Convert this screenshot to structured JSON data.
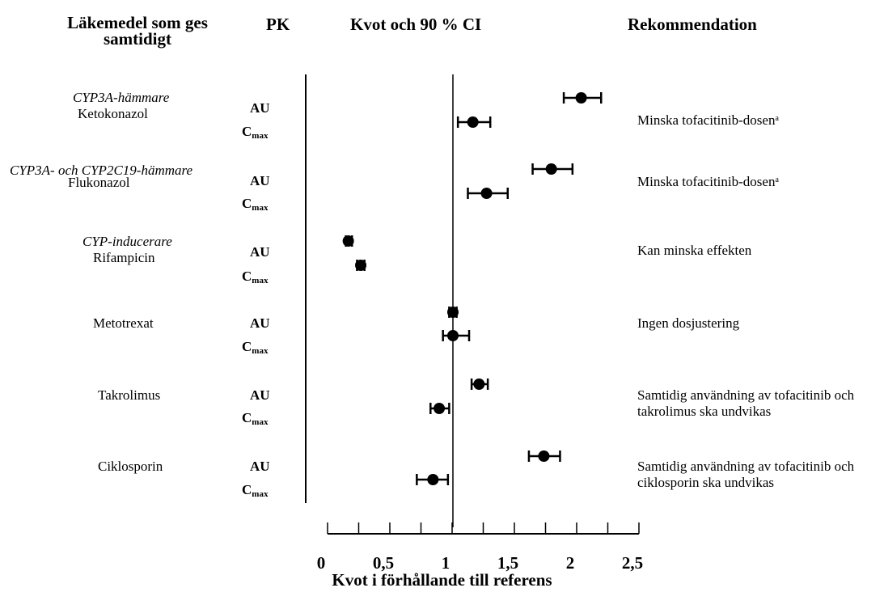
{
  "headers": {
    "drug": "Läkemedel som ges samtidigt",
    "pk": "PK",
    "ratio": "Kvot och 90 % CI",
    "recommendation": "Rekommendation"
  },
  "rows": [
    {
      "class": "CYP3A-hämmare",
      "drug": "Ketokonazol",
      "recommendation": "Minska tofacitinib-dosen",
      "footnote": "a"
    },
    {
      "class": "CYP3A- och CYP2C19-hämmare",
      "drug": "Flukonazol",
      "recommendation": "Minska tofacitinib-dosen",
      "footnote": "a"
    },
    {
      "class": "CYP-inducerare",
      "drug": "Rifampicin",
      "recommendation": "Kan minska effekten",
      "footnote": ""
    },
    {
      "class": "",
      "drug": "Metotrexat",
      "recommendation": "Ingen dosjustering",
      "footnote": ""
    },
    {
      "class": "",
      "drug": "Takrolimus",
      "recommendation": "Samtidig användning av tofacitinib och takrolimus ska undvikas",
      "footnote": ""
    },
    {
      "class": "",
      "drug": "Ciklosporin",
      "recommendation": "Samtidig användning av tofacitinib och ciklosporin ska undvikas",
      "footnote": ""
    }
  ],
  "metrics": {
    "auc": "AU",
    "cmax_main": "C",
    "cmax_sub": "max"
  },
  "chart_data": {
    "type": "scatter",
    "subtype": "forest-plot",
    "xlabel": "Kvot i förhållande till referens",
    "xlim": [
      0,
      2.5
    ],
    "xticks": [
      "0",
      "0,5",
      "1",
      "1,5",
      "2",
      "2,5"
    ],
    "reference_line": 1,
    "points": [
      {
        "drug": "Ketokonazol",
        "metric": "AU",
        "ratio": 2.03,
        "ci": [
          1.89,
          2.19
        ]
      },
      {
        "drug": "Ketokonazol",
        "metric": "Cmax",
        "ratio": 1.16,
        "ci": [
          1.04,
          1.3
        ]
      },
      {
        "drug": "Flukonazol",
        "metric": "AU",
        "ratio": 1.79,
        "ci": [
          1.64,
          1.96
        ]
      },
      {
        "drug": "Flukonazol",
        "metric": "Cmax",
        "ratio": 1.27,
        "ci": [
          1.12,
          1.44
        ]
      },
      {
        "drug": "Rifampicin",
        "metric": "AU",
        "ratio": 0.16,
        "ci": [
          0.14,
          0.19
        ]
      },
      {
        "drug": "Rifampicin",
        "metric": "Cmax",
        "ratio": 0.26,
        "ci": [
          0.23,
          0.29
        ]
      },
      {
        "drug": "Metotrexat",
        "metric": "AU",
        "ratio": 1.0,
        "ci": [
          0.97,
          1.03
        ]
      },
      {
        "drug": "Metotrexat",
        "metric": "Cmax",
        "ratio": 1.0,
        "ci": [
          0.92,
          1.13
        ]
      },
      {
        "drug": "Takrolimus",
        "metric": "AU",
        "ratio": 1.21,
        "ci": [
          1.15,
          1.28
        ]
      },
      {
        "drug": "Takrolimus",
        "metric": "Cmax",
        "ratio": 0.89,
        "ci": [
          0.82,
          0.97
        ]
      },
      {
        "drug": "Ciklosporin",
        "metric": "AU",
        "ratio": 1.73,
        "ci": [
          1.61,
          1.86
        ]
      },
      {
        "drug": "Ciklosporin",
        "metric": "Cmax",
        "ratio": 0.84,
        "ci": [
          0.71,
          0.96
        ]
      }
    ]
  }
}
